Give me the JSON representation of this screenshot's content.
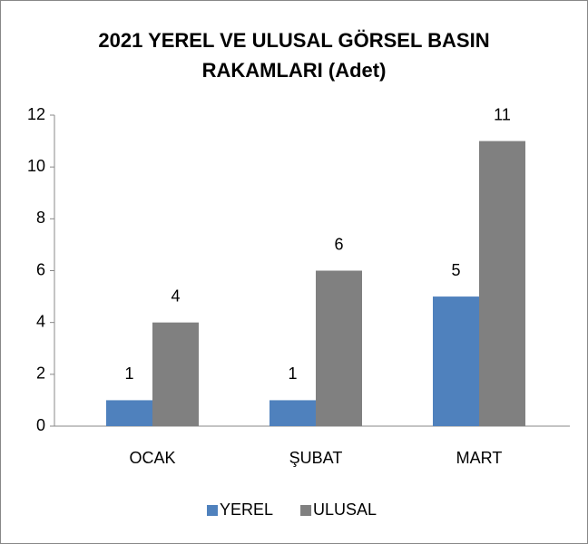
{
  "chart_data": {
    "type": "bar",
    "title": "2021 YEREL VE ULUSAL GÖRSEL BASIN RAKAMLARI (Adet)",
    "categories": [
      "OCAK",
      "ŞUBAT",
      "MART"
    ],
    "series": [
      {
        "name": "YEREL",
        "color": "#4f81bd",
        "values": [
          1,
          1,
          5
        ]
      },
      {
        "name": "ULUSAL",
        "color": "#808080",
        "values": [
          4,
          6,
          11
        ]
      }
    ],
    "ylim": [
      0,
      12
    ],
    "yticks": [
      0,
      2,
      4,
      6,
      8,
      10,
      12
    ],
    "legend": "bottom"
  }
}
